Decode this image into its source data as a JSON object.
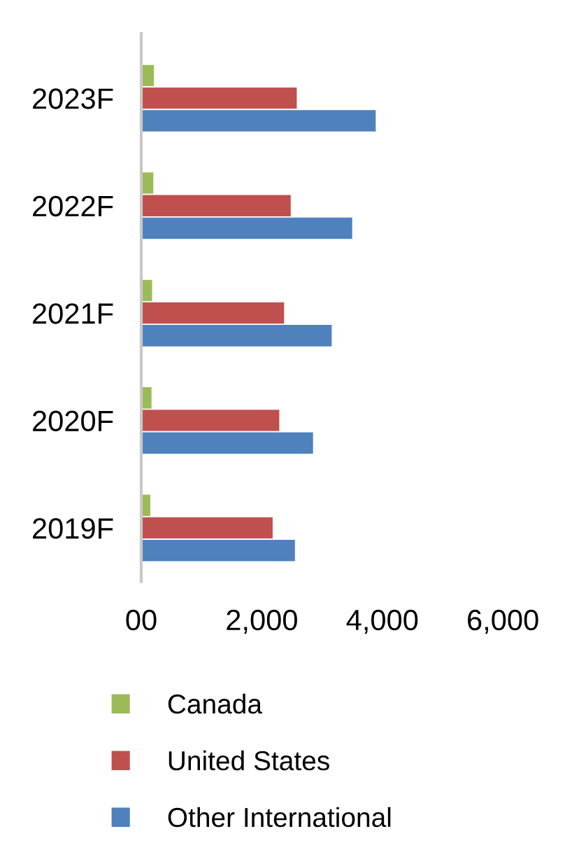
{
  "chart_data": {
    "type": "bar",
    "orientation": "horizontal",
    "categories": [
      "2023F",
      "2022F",
      "2021F",
      "2020F",
      "2019F"
    ],
    "series": [
      {
        "name": "Canada",
        "color": "#9bbb59",
        "values": [
          220,
          210,
          190,
          180,
          160
        ]
      },
      {
        "name": "United States",
        "color": "#c0504d",
        "values": [
          2590,
          2490,
          2380,
          2300,
          2190
        ]
      },
      {
        "name": "Other International",
        "color": "#4f81bd",
        "values": [
          3900,
          3510,
          3170,
          2860,
          2560
        ]
      }
    ],
    "xlim": [
      0,
      6000
    ],
    "xticks": [
      {
        "value": 0,
        "label": "00"
      },
      {
        "value": 2000,
        "label": "2,000"
      },
      {
        "value": 4000,
        "label": "4,000"
      },
      {
        "value": 6000,
        "label": "6,000"
      }
    ],
    "grid": false,
    "legend": "bottom"
  }
}
